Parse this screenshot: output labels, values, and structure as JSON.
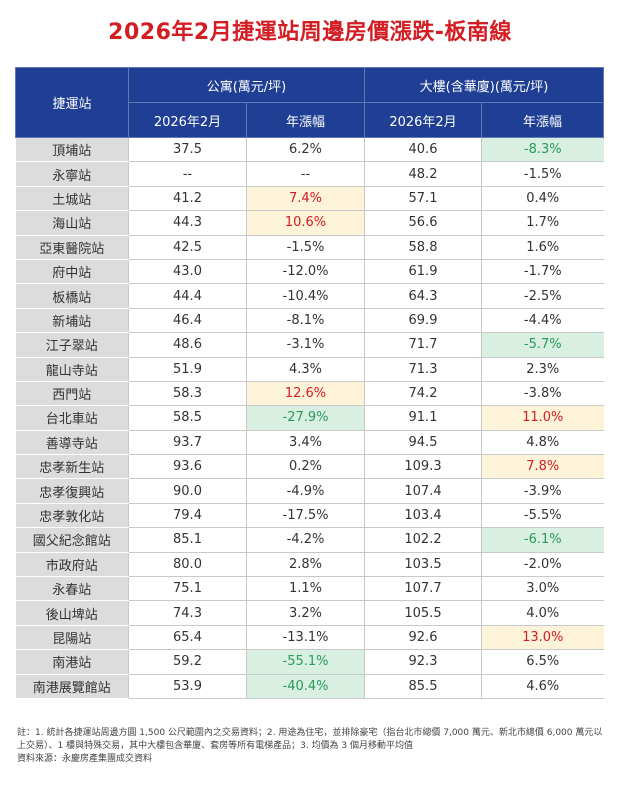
{
  "title": "2026年2月捷運站周邊房價漲跌-板南線",
  "header": {
    "station": "捷運站",
    "apartment": "公寓(萬元/坪)",
    "building": "大樓(含華廈)(萬元/坪)",
    "month": "2026年2月",
    "change": "年漲幅"
  },
  "chart_data": {
    "type": "table",
    "columns": [
      "捷運站",
      "公寓 2026年2月",
      "公寓 年漲幅",
      "大樓 2026年2月",
      "大樓 年漲幅"
    ],
    "rows": [
      {
        "station": "頂埔站",
        "apt_price": "37.5",
        "apt_change": "6.2%",
        "apt_hl": "",
        "bld_price": "40.6",
        "bld_change": "-8.3%",
        "bld_hl": "green"
      },
      {
        "station": "永寧站",
        "apt_price": "--",
        "apt_change": "--",
        "apt_hl": "",
        "bld_price": "48.2",
        "bld_change": "-1.5%",
        "bld_hl": ""
      },
      {
        "station": "土城站",
        "apt_price": "41.2",
        "apt_change": "7.4%",
        "apt_hl": "yellow",
        "bld_price": "57.1",
        "bld_change": "0.4%",
        "bld_hl": ""
      },
      {
        "station": "海山站",
        "apt_price": "44.3",
        "apt_change": "10.6%",
        "apt_hl": "yellow",
        "bld_price": "56.6",
        "bld_change": "1.7%",
        "bld_hl": ""
      },
      {
        "station": "亞東醫院站",
        "apt_price": "42.5",
        "apt_change": "-1.5%",
        "apt_hl": "",
        "bld_price": "58.8",
        "bld_change": "1.6%",
        "bld_hl": ""
      },
      {
        "station": "府中站",
        "apt_price": "43.0",
        "apt_change": "-12.0%",
        "apt_hl": "",
        "bld_price": "61.9",
        "bld_change": "-1.7%",
        "bld_hl": ""
      },
      {
        "station": "板橋站",
        "apt_price": "44.4",
        "apt_change": "-10.4%",
        "apt_hl": "",
        "bld_price": "64.3",
        "bld_change": "-2.5%",
        "bld_hl": ""
      },
      {
        "station": "新埔站",
        "apt_price": "46.4",
        "apt_change": "-8.1%",
        "apt_hl": "",
        "bld_price": "69.9",
        "bld_change": "-4.4%",
        "bld_hl": ""
      },
      {
        "station": "江子翠站",
        "apt_price": "48.6",
        "apt_change": "-3.1%",
        "apt_hl": "",
        "bld_price": "71.7",
        "bld_change": "-5.7%",
        "bld_hl": "green"
      },
      {
        "station": "龍山寺站",
        "apt_price": "51.9",
        "apt_change": "4.3%",
        "apt_hl": "",
        "bld_price": "71.3",
        "bld_change": "2.3%",
        "bld_hl": ""
      },
      {
        "station": "西門站",
        "apt_price": "58.3",
        "apt_change": "12.6%",
        "apt_hl": "yellow",
        "bld_price": "74.2",
        "bld_change": "-3.8%",
        "bld_hl": ""
      },
      {
        "station": "台北車站",
        "apt_price": "58.5",
        "apt_change": "-27.9%",
        "apt_hl": "green",
        "bld_price": "91.1",
        "bld_change": "11.0%",
        "bld_hl": "yellow"
      },
      {
        "station": "善導寺站",
        "apt_price": "93.7",
        "apt_change": "3.4%",
        "apt_hl": "",
        "bld_price": "94.5",
        "bld_change": "4.8%",
        "bld_hl": ""
      },
      {
        "station": "忠孝新生站",
        "apt_price": "93.6",
        "apt_change": "0.2%",
        "apt_hl": "",
        "bld_price": "109.3",
        "bld_change": "7.8%",
        "bld_hl": "yellow"
      },
      {
        "station": "忠孝復興站",
        "apt_price": "90.0",
        "apt_change": "-4.9%",
        "apt_hl": "",
        "bld_price": "107.4",
        "bld_change": "-3.9%",
        "bld_hl": ""
      },
      {
        "station": "忠孝敦化站",
        "apt_price": "79.4",
        "apt_change": "-17.5%",
        "apt_hl": "",
        "bld_price": "103.4",
        "bld_change": "-5.5%",
        "bld_hl": ""
      },
      {
        "station": "國父紀念館站",
        "apt_price": "85.1",
        "apt_change": "-4.2%",
        "apt_hl": "",
        "bld_price": "102.2",
        "bld_change": "-6.1%",
        "bld_hl": "green"
      },
      {
        "station": "市政府站",
        "apt_price": "80.0",
        "apt_change": "2.8%",
        "apt_hl": "",
        "bld_price": "103.5",
        "bld_change": "-2.0%",
        "bld_hl": ""
      },
      {
        "station": "永春站",
        "apt_price": "75.1",
        "apt_change": "1.1%",
        "apt_hl": "",
        "bld_price": "107.7",
        "bld_change": "3.0%",
        "bld_hl": ""
      },
      {
        "station": "後山埤站",
        "apt_price": "74.3",
        "apt_change": "3.2%",
        "apt_hl": "",
        "bld_price": "105.5",
        "bld_change": "4.0%",
        "bld_hl": ""
      },
      {
        "station": "昆陽站",
        "apt_price": "65.4",
        "apt_change": "-13.1%",
        "apt_hl": "",
        "bld_price": "92.6",
        "bld_change": "13.0%",
        "bld_hl": "yellow"
      },
      {
        "station": "南港站",
        "apt_price": "59.2",
        "apt_change": "-55.1%",
        "apt_hl": "green",
        "bld_price": "92.3",
        "bld_change": "6.5%",
        "bld_hl": ""
      },
      {
        "station": "南港展覽館站",
        "apt_price": "53.9",
        "apt_change": "-40.4%",
        "apt_hl": "green",
        "bld_price": "85.5",
        "bld_change": "4.6%",
        "bld_hl": ""
      }
    ]
  },
  "notes": {
    "note": "註：1. 統計各捷運站周邊方圓 1,500 公尺範圍內之交易資料；2. 用途為住宅，並排除豪宅（指台北市總價 7,000 萬元、新北市總價 6,000 萬元以上交易）、1 樓與特殊交易，其中大樓包含華廈、套房等所有電梯產品；3. 均價為 3 個月移動平均值",
    "source": "資料來源：永慶房產集團成交資料"
  }
}
